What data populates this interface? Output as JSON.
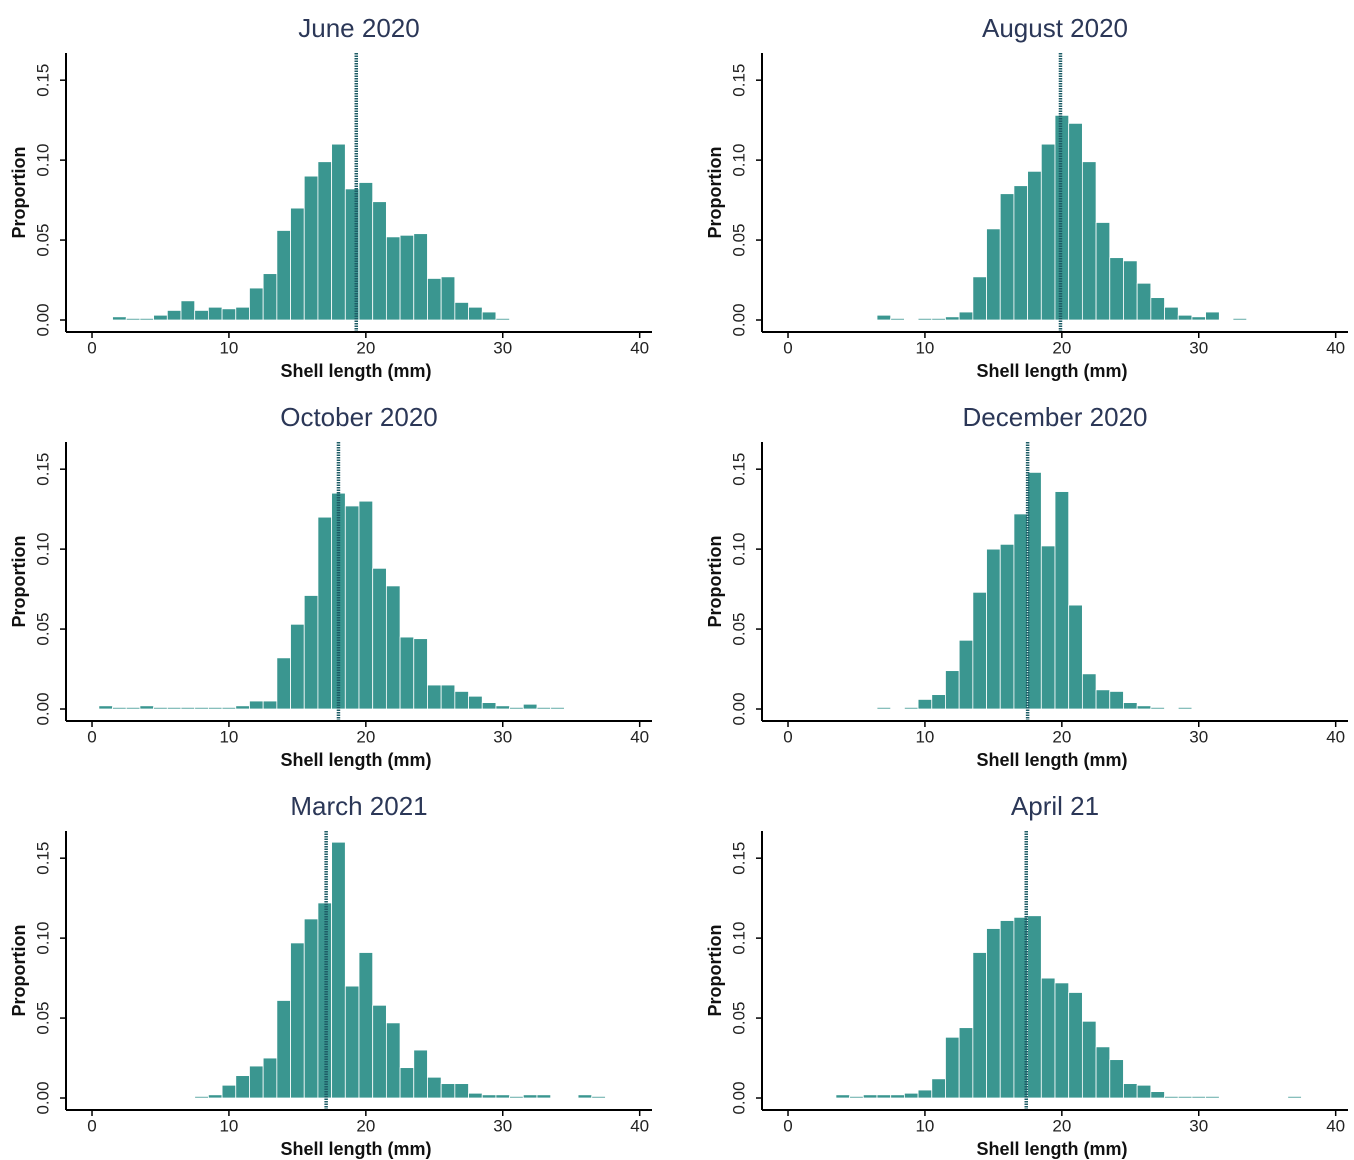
{
  "chart_data": [
    {
      "type": "histogram",
      "title": "June 2020",
      "x_label": "Shell length (mm)",
      "y_label": "Proportion",
      "color": "#3a9690",
      "mean_line": 19.3,
      "bins": [
        1.5,
        2.5,
        3.5,
        4.5,
        5.5,
        6.5,
        7.5,
        8.5,
        9.5,
        10.5,
        11.5,
        12.5,
        13.5,
        14.5,
        15.5,
        16.5,
        17.5,
        18.5,
        19.5,
        20.5,
        21.5,
        22.5,
        23.5,
        24.5,
        25.5,
        26.5,
        27.5,
        28.5,
        29.5,
        30.5
      ],
      "values": [
        0.002,
        0.001,
        0.001,
        0.003,
        0.006,
        0.012,
        0.006,
        0.008,
        0.007,
        0.008,
        0.02,
        0.029,
        0.056,
        0.07,
        0.09,
        0.099,
        0.11,
        0.082,
        0.086,
        0.074,
        0.052,
        0.053,
        0.054,
        0.026,
        0.027,
        0.011,
        0.008,
        0.005,
        0.001
      ],
      "xlim": [
        -1.9,
        40.9
      ],
      "ylim": [
        -0.0075,
        0.167
      ],
      "xticks": [
        0,
        10,
        20,
        30,
        40
      ],
      "yticks": [
        {
          "value": 0,
          "label": "0.00"
        },
        {
          "value": 0.05,
          "label": "0.05"
        },
        {
          "value": 0.1,
          "label": "0.10"
        },
        {
          "value": 0.15,
          "label": "0.15"
        }
      ]
    },
    {
      "type": "histogram",
      "title": "August 2020",
      "x_label": "Shell length (mm)",
      "y_label": "Proportion",
      "color": "#3a9690",
      "mean_line": 19.9,
      "bins": [
        6.5,
        7.5,
        8.5,
        9.5,
        10.5,
        11.5,
        12.5,
        13.5,
        14.5,
        15.5,
        16.5,
        17.5,
        18.5,
        19.5,
        20.5,
        21.5,
        22.5,
        23.5,
        24.5,
        25.5,
        26.5,
        27.5,
        28.5,
        29.5,
        30.5,
        31.5,
        32.5,
        33.5
      ],
      "values": [
        0.003,
        0.001,
        0,
        0.001,
        0.001,
        0.002,
        0.005,
        0.027,
        0.057,
        0.079,
        0.084,
        0.093,
        0.11,
        0.128,
        0.123,
        0.099,
        0.061,
        0.039,
        0.037,
        0.023,
        0.014,
        0.008,
        0.003,
        0.002,
        0.005,
        0,
        0.001
      ],
      "xlim": [
        -1.9,
        40.9
      ],
      "ylim": [
        -0.0075,
        0.167
      ],
      "xticks": [
        0,
        10,
        20,
        30,
        40
      ],
      "yticks": [
        {
          "value": 0,
          "label": "0.00"
        },
        {
          "value": 0.05,
          "label": "0.05"
        },
        {
          "value": 0.1,
          "label": "0.10"
        },
        {
          "value": 0.15,
          "label": "0.15"
        }
      ]
    },
    {
      "type": "histogram",
      "title": "October 2020",
      "x_label": "Shell length (mm)",
      "y_label": "Proportion",
      "color": "#3a9690",
      "mean_line": 18.0,
      "bins": [
        0.5,
        1.5,
        2.5,
        3.5,
        4.5,
        5.5,
        6.5,
        7.5,
        8.5,
        9.5,
        10.5,
        11.5,
        12.5,
        13.5,
        14.5,
        15.5,
        16.5,
        17.5,
        18.5,
        19.5,
        20.5,
        21.5,
        22.5,
        23.5,
        24.5,
        25.5,
        26.5,
        27.5,
        28.5,
        29.5,
        30.5,
        31.5,
        32.5,
        33.5,
        34.5
      ],
      "values": [
        0.002,
        0.001,
        0.001,
        0.002,
        0.001,
        0.001,
        0.001,
        0.001,
        0.001,
        0.001,
        0.002,
        0.005,
        0.005,
        0.032,
        0.053,
        0.071,
        0.12,
        0.135,
        0.127,
        0.13,
        0.088,
        0.077,
        0.045,
        0.044,
        0.015,
        0.015,
        0.011,
        0.008,
        0.004,
        0.002,
        0.001,
        0.003,
        0.001,
        0.001
      ],
      "xlim": [
        -1.9,
        40.9
      ],
      "ylim": [
        -0.0075,
        0.167
      ],
      "xticks": [
        0,
        10,
        20,
        30,
        40
      ],
      "yticks": [
        {
          "value": 0,
          "label": "0.00"
        },
        {
          "value": 0.05,
          "label": "0.05"
        },
        {
          "value": 0.1,
          "label": "0.10"
        },
        {
          "value": 0.15,
          "label": "0.15"
        }
      ]
    },
    {
      "type": "histogram",
      "title": "December 2020",
      "x_label": "Shell length (mm)",
      "y_label": "Proportion",
      "color": "#3a9690",
      "mean_line": 17.5,
      "bins": [
        6.5,
        7.5,
        8.5,
        9.5,
        10.5,
        11.5,
        12.5,
        13.5,
        14.5,
        15.5,
        16.5,
        17.5,
        18.5,
        19.5,
        20.5,
        21.5,
        22.5,
        23.5,
        24.5,
        25.5,
        26.5,
        27.5,
        28.5,
        29.5
      ],
      "values": [
        0.001,
        0,
        0.001,
        0.006,
        0.009,
        0.024,
        0.043,
        0.073,
        0.1,
        0.103,
        0.122,
        0.148,
        0.102,
        0.136,
        0.065,
        0.022,
        0.012,
        0.011,
        0.004,
        0.002,
        0.001,
        0,
        0.001
      ],
      "xlim": [
        -1.9,
        40.9
      ],
      "ylim": [
        -0.0075,
        0.167
      ],
      "xticks": [
        0,
        10,
        20,
        30,
        40
      ],
      "yticks": [
        {
          "value": 0,
          "label": "0.00"
        },
        {
          "value": 0.05,
          "label": "0.05"
        },
        {
          "value": 0.1,
          "label": "0.10"
        },
        {
          "value": 0.15,
          "label": "0.15"
        }
      ]
    },
    {
      "type": "histogram",
      "title": "March 2021",
      "x_label": "Shell length (mm)",
      "y_label": "Proportion",
      "color": "#3a9690",
      "mean_line": 17.1,
      "bins": [
        7.5,
        8.5,
        9.5,
        10.5,
        11.5,
        12.5,
        13.5,
        14.5,
        15.5,
        16.5,
        17.5,
        18.5,
        19.5,
        20.5,
        21.5,
        22.5,
        23.5,
        24.5,
        25.5,
        26.5,
        27.5,
        28.5,
        29.5,
        30.5,
        31.5,
        32.5,
        33.5,
        34.5,
        35.5,
        36.5,
        37.5
      ],
      "values": [
        0.001,
        0.002,
        0.008,
        0.014,
        0.02,
        0.025,
        0.061,
        0.097,
        0.112,
        0.122,
        0.16,
        0.07,
        0.091,
        0.058,
        0.047,
        0.019,
        0.03,
        0.013,
        0.009,
        0.009,
        0.003,
        0.002,
        0.002,
        0.001,
        0.002,
        0.002,
        0,
        0,
        0.002,
        0.001
      ],
      "xlim": [
        -1.9,
        40.9
      ],
      "ylim": [
        -0.0075,
        0.167
      ],
      "xticks": [
        0,
        10,
        20,
        30,
        40
      ],
      "yticks": [
        {
          "value": 0,
          "label": "0.00"
        },
        {
          "value": 0.05,
          "label": "0.05"
        },
        {
          "value": 0.1,
          "label": "0.10"
        },
        {
          "value": 0.15,
          "label": "0.15"
        }
      ]
    },
    {
      "type": "histogram",
      "title": "April 21",
      "x_label": "Shell length (mm)",
      "y_label": "Proportion",
      "color": "#3a9690",
      "mean_line": 17.4,
      "bins": [
        3.5,
        4.5,
        5.5,
        6.5,
        7.5,
        8.5,
        9.5,
        10.5,
        11.5,
        12.5,
        13.5,
        14.5,
        15.5,
        16.5,
        17.5,
        18.5,
        19.5,
        20.5,
        21.5,
        22.5,
        23.5,
        24.5,
        25.5,
        26.5,
        27.5,
        28.5,
        29.5,
        30.5,
        31.5,
        32.5,
        33.5,
        34.5,
        35.5,
        36.5,
        37.5
      ],
      "values": [
        0.002,
        0.001,
        0.002,
        0.002,
        0.002,
        0.003,
        0.005,
        0.012,
        0.038,
        0.044,
        0.091,
        0.106,
        0.111,
        0.113,
        0.114,
        0.075,
        0.072,
        0.066,
        0.048,
        0.032,
        0.024,
        0.009,
        0.008,
        0.004,
        0.001,
        0.001,
        0.001,
        0.001,
        0,
        0,
        0,
        0,
        0,
        0.001
      ],
      "xlim": [
        -1.9,
        40.9
      ],
      "ylim": [
        -0.0075,
        0.167
      ],
      "xticks": [
        0,
        10,
        20,
        30,
        40
      ],
      "yticks": [
        {
          "value": 0,
          "label": "0.00"
        },
        {
          "value": 0.05,
          "label": "0.05"
        },
        {
          "value": 0.1,
          "label": "0.10"
        },
        {
          "value": 0.15,
          "label": "0.15"
        }
      ]
    }
  ]
}
